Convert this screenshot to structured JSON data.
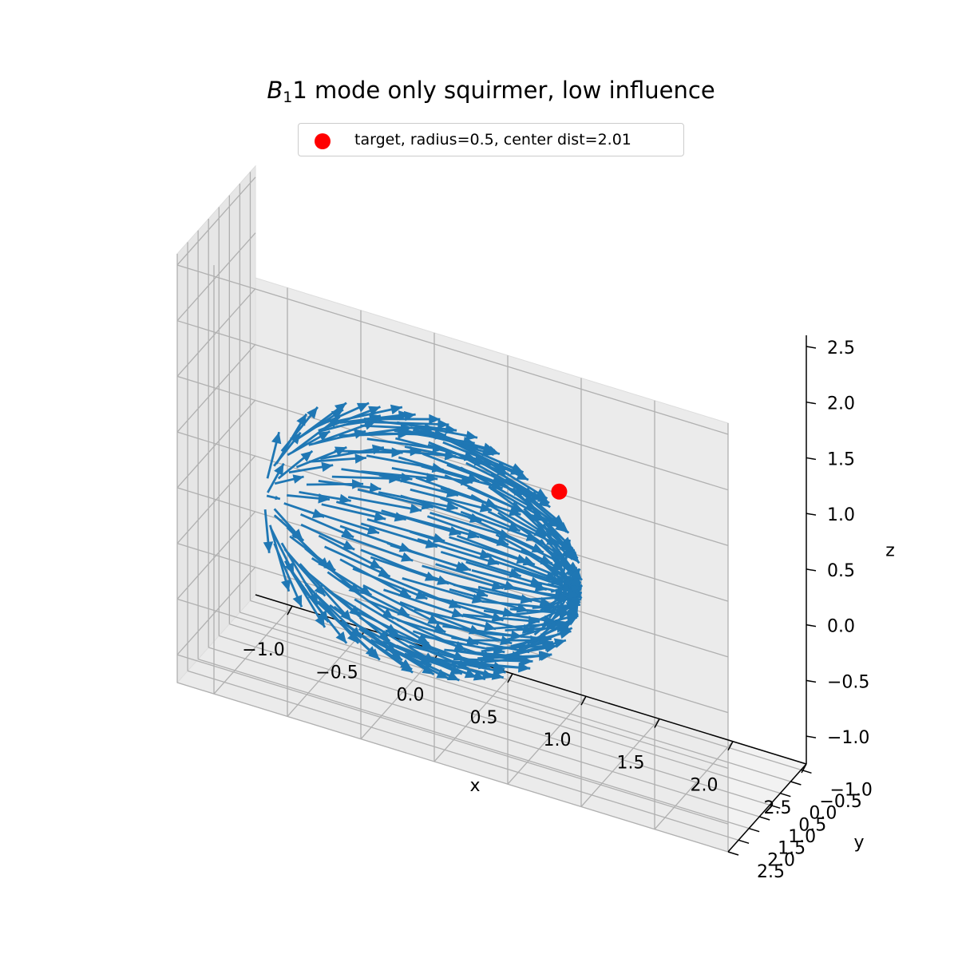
{
  "chart_data": {
    "type": "quiver3d",
    "title_symbol": "B",
    "title_subscript": "1",
    "title_rest": "1 mode only squirmer, low influence",
    "xlabel": "x",
    "ylabel": "y",
    "zlabel": "z",
    "x_ticks": [
      "−1.0",
      "−0.5",
      "0.0",
      "0.5",
      "1.0",
      "1.5",
      "2.0",
      "2.5"
    ],
    "y_ticks": [
      "−1.0",
      "−0.5",
      "0.0",
      "0.5",
      "1.0",
      "1.5",
      "2.0",
      "2.5"
    ],
    "z_ticks": [
      "−1.0",
      "−0.5",
      "0.0",
      "0.5",
      "1.0",
      "1.5",
      "2.0",
      "2.5"
    ],
    "x_range": [
      -1.25,
      2.5
    ],
    "y_range": [
      -1.25,
      2.5
    ],
    "z_range": [
      -1.25,
      2.6
    ],
    "grid": true,
    "legend_position": "top-center",
    "arrow_color": "#1f77b4",
    "target": {
      "label": "target, radius=0.5, center dist=2.01",
      "color": "#ff0000",
      "center": [
        1.16,
        1.16,
        1.16
      ],
      "radius": 0.5
    },
    "squirmer": {
      "center": [
        0,
        0,
        0
      ],
      "radius": 1.0,
      "mode": "B1",
      "description_points": "vector field sampled on unit sphere"
    }
  }
}
